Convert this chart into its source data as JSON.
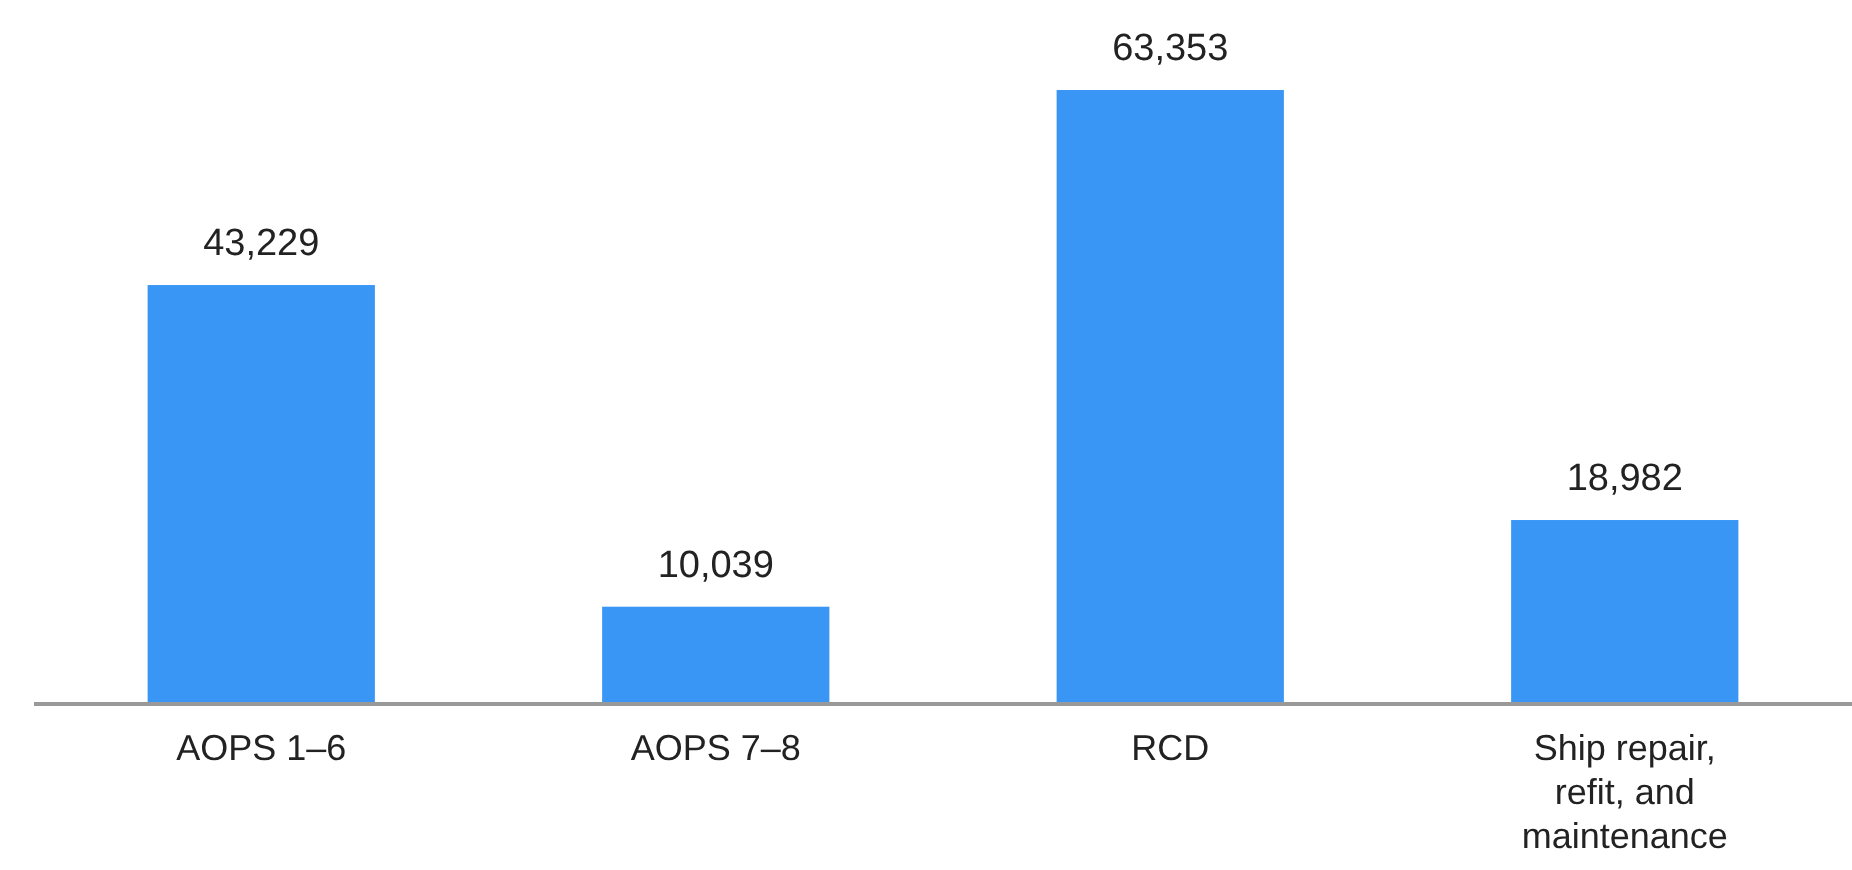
{
  "chart_data": {
    "type": "bar",
    "categories": [
      "AOPS 1–6",
      "AOPS 7–8",
      "RCD",
      "Ship repair, refit, and maintenance"
    ],
    "values": [
      43229,
      10039,
      63353,
      18982
    ],
    "value_labels": [
      "43,229",
      "10,039",
      "63,353",
      "18,982"
    ],
    "color": "#3a96f4"
  }
}
